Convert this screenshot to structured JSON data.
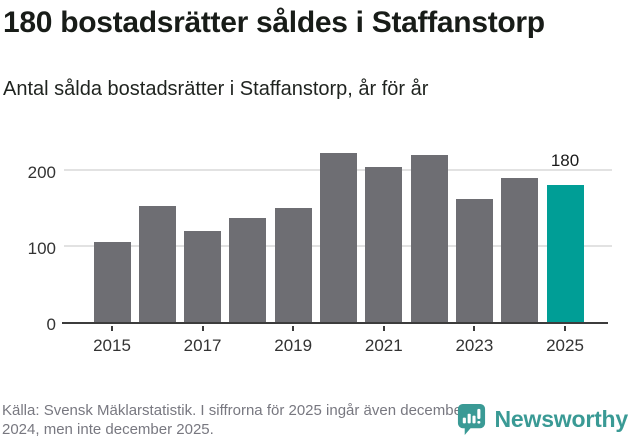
{
  "header": {
    "title": "180 bostadsrätter såldes i Staffanstorp",
    "subtitle": "Antal sålda bostadsrätter i Staffanstorp, år för år"
  },
  "chart_data": {
    "type": "bar",
    "title": "180 bostadsrätter såldes i Staffanstorp",
    "subtitle": "Antal sålda bostadsrätter i Staffanstorp, år för år",
    "categories": [
      "2015",
      "2016",
      "2017",
      "2018",
      "2019",
      "2020",
      "2021",
      "2022",
      "2023",
      "2024",
      "2025"
    ],
    "values": [
      105,
      152,
      120,
      137,
      150,
      223,
      204,
      220,
      162,
      190,
      180
    ],
    "highlight_index": 10,
    "highlight_value_label": "180",
    "bar_color": "#6e6e73",
    "highlight_color": "#009e96",
    "grid_color": "#e2e2e2",
    "axis_color": "#3c3c3c",
    "yticks": [
      0,
      100,
      200
    ],
    "xtick_labels": [
      "2015",
      "2017",
      "2019",
      "2021",
      "2023",
      "2025"
    ],
    "ylim": [
      0,
      236
    ],
    "grid": "horizontal-only",
    "legend": "none",
    "xlabel": "",
    "ylabel": ""
  },
  "footer": {
    "source": "Källa: Svensk Mäklarstatistik. I siffrorna för 2025 ingår även december 2024, men inte december 2025.",
    "brand": "Newsworthy",
    "brand_color": "#3a9a95"
  }
}
